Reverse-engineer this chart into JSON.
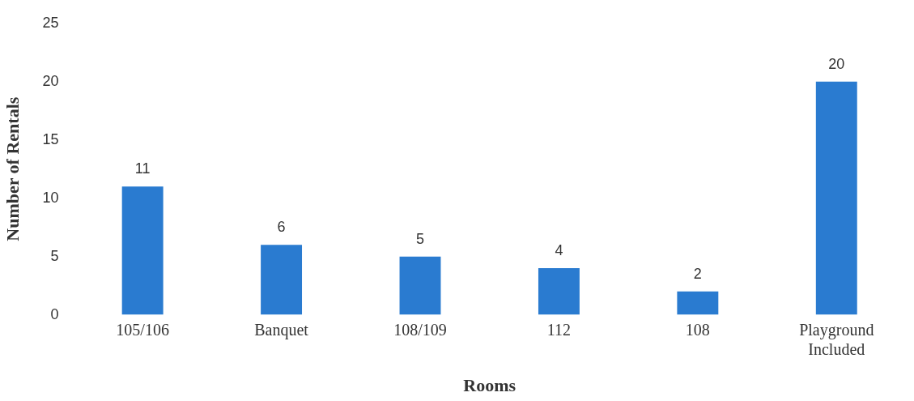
{
  "chart_data": {
    "type": "bar",
    "xlabel": "Rooms",
    "ylabel": "Number of Rentals",
    "categories": [
      "105/106",
      "Banquet",
      "108/109",
      "112",
      "108",
      "Playground Included"
    ],
    "values": [
      11,
      6,
      5,
      4,
      2,
      20
    ],
    "color": "#2a7bd0",
    "ylim": [
      0,
      25
    ],
    "yticks": [
      0,
      5,
      10,
      15,
      20,
      25
    ],
    "grid": false,
    "legend": false,
    "data_labels": true
  }
}
